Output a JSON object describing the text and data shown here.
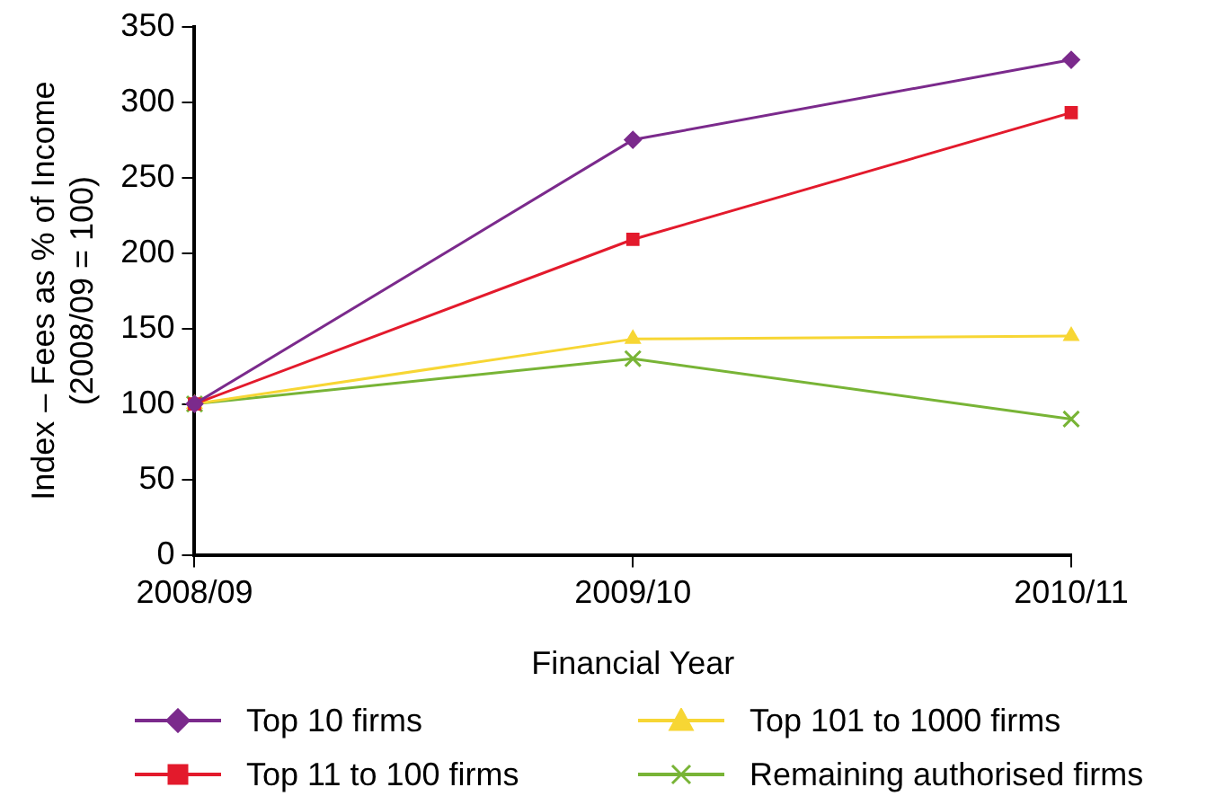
{
  "chart_data": {
    "type": "line",
    "xlabel": "Financial Year",
    "ylabel": "Index – Fees as % of Income\n(2008/09 = 100)",
    "categories": [
      "2008/09",
      "2009/10",
      "2010/11"
    ],
    "series": [
      {
        "name": "Top 10 firms",
        "color": "#7b2a8c",
        "marker": "diamond",
        "values": [
          100,
          275,
          328
        ]
      },
      {
        "name": "Top 11 to 100 firms",
        "color": "#e31a2c",
        "marker": "square",
        "values": [
          100,
          209,
          293
        ]
      },
      {
        "name": "Top 101 to 1000 firms",
        "color": "#f7d634",
        "marker": "triangle",
        "values": [
          100,
          143,
          145
        ]
      },
      {
        "name": "Remaining authorised firms",
        "color": "#78b436",
        "marker": "cross",
        "values": [
          100,
          130,
          90
        ]
      }
    ],
    "ylim": [
      0,
      350
    ],
    "yticks": [
      0,
      50,
      100,
      150,
      200,
      250,
      300,
      350
    ],
    "grid": false,
    "legend": "bottom",
    "line_style": "solid"
  }
}
